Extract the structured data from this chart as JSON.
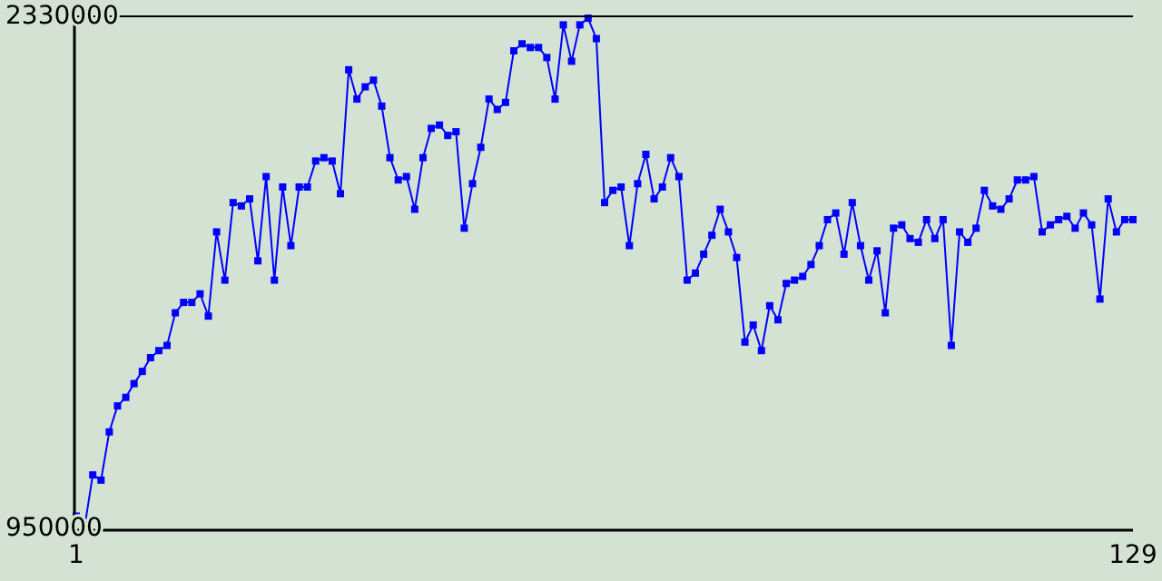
{
  "chart_data": {
    "type": "line",
    "marker": "square",
    "line_style": "solid",
    "grid": false,
    "xlim": [
      1,
      129
    ],
    "xticks": [
      1,
      129
    ],
    "ylim": [
      950000,
      2330000
    ],
    "yticks": [
      950000,
      2330000
    ],
    "x": [
      1,
      2,
      3,
      4,
      5,
      6,
      7,
      8,
      9,
      10,
      11,
      12,
      13,
      14,
      15,
      16,
      17,
      18,
      19,
      20,
      21,
      22,
      23,
      24,
      25,
      26,
      27,
      28,
      29,
      30,
      31,
      32,
      33,
      34,
      35,
      36,
      37,
      38,
      39,
      40,
      41,
      42,
      43,
      44,
      45,
      46,
      47,
      48,
      49,
      50,
      51,
      52,
      53,
      54,
      55,
      56,
      57,
      58,
      59,
      60,
      61,
      62,
      63,
      64,
      65,
      66,
      67,
      68,
      69,
      70,
      71,
      72,
      73,
      74,
      75,
      76,
      77,
      78,
      79,
      80,
      81,
      82,
      83,
      84,
      85,
      86,
      87,
      88,
      89,
      90,
      91,
      92,
      93,
      94,
      95,
      96,
      97,
      98,
      99,
      100,
      101,
      102,
      103,
      104,
      105,
      106,
      107,
      108,
      109,
      110,
      111,
      112,
      113,
      114,
      115,
      116,
      117,
      118,
      119,
      120,
      121,
      122,
      123,
      124,
      125,
      126,
      127,
      128,
      129
    ],
    "series": [
      {
        "color": "#0000ff",
        "values": [
          983000,
          952000,
          1094000,
          1080000,
          1210000,
          1280000,
          1303000,
          1340000,
          1373000,
          1410000,
          1429000,
          1443000,
          1531000,
          1559000,
          1559000,
          1582000,
          1522000,
          1749000,
          1619000,
          1828000,
          1819000,
          1838000,
          1671000,
          1898000,
          1619000,
          1870000,
          1712000,
          1870000,
          1870000,
          1940000,
          1949000,
          1940000,
          1852000,
          2186000,
          2107000,
          2140000,
          2158000,
          2088000,
          1949000,
          1889000,
          1898000,
          1810000,
          1949000,
          2028000,
          2037000,
          2009000,
          2019000,
          1759000,
          1879000,
          1977000,
          2107000,
          2079000,
          2098000,
          2237000,
          2256000,
          2246000,
          2246000,
          2219000,
          2107000,
          2307000,
          2209000,
          2307000,
          2325000,
          2270000,
          1828000,
          1861000,
          1870000,
          1712000,
          1879000,
          1958000,
          1838000,
          1870000,
          1949000,
          1898000,
          1619000,
          1638000,
          1689000,
          1740000,
          1810000,
          1749000,
          1680000,
          1452000,
          1498000,
          1429000,
          1550000,
          1512000,
          1610000,
          1619000,
          1629000,
          1661000,
          1712000,
          1782000,
          1800000,
          1689000,
          1828000,
          1712000,
          1619000,
          1698000,
          1531000,
          1759000,
          1768000,
          1731000,
          1721000,
          1782000,
          1731000,
          1782000,
          1443000,
          1749000,
          1721000,
          1759000,
          1861000,
          1819000,
          1810000,
          1838000,
          1889000,
          1889000,
          1898000,
          1749000,
          1768000,
          1782000,
          1791000,
          1759000,
          1800000,
          1768000,
          1568000,
          1838000,
          1749000,
          1782000,
          1782000
        ]
      }
    ]
  }
}
